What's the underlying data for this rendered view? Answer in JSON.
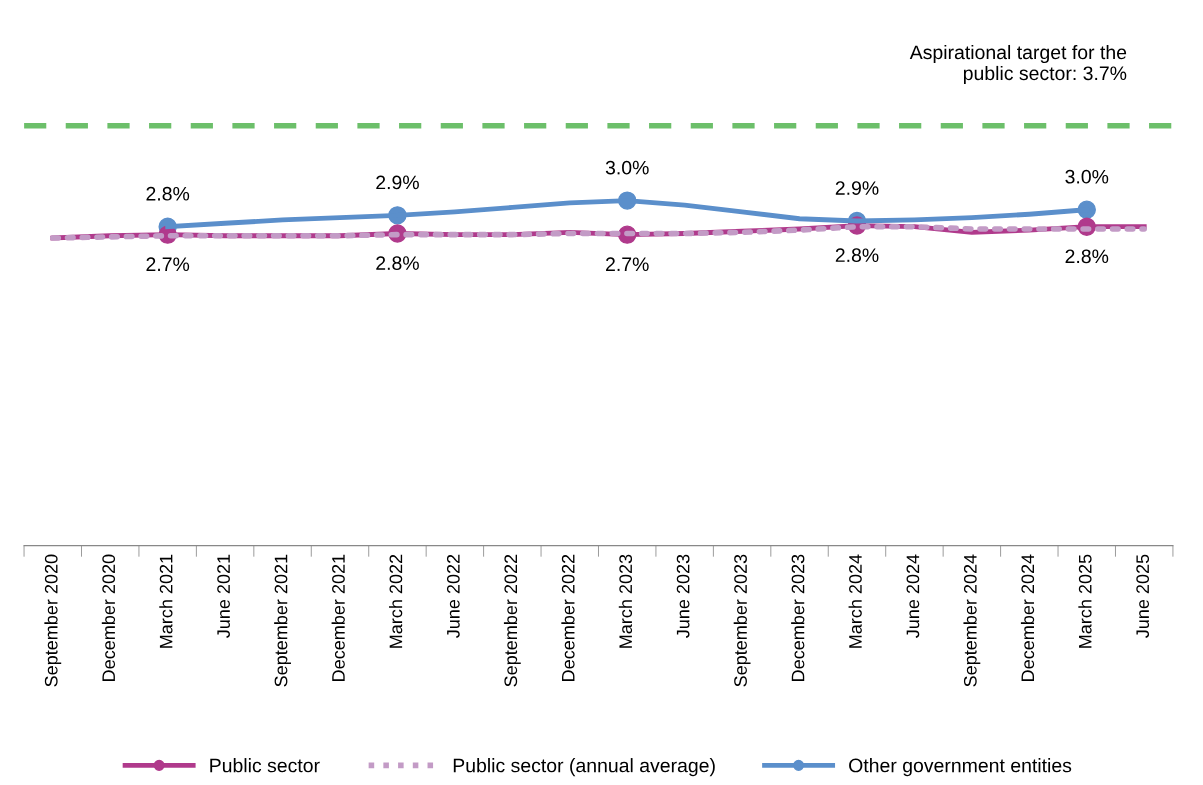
{
  "chart_data": {
    "type": "line",
    "categories": [
      "September 2020",
      "December 2020",
      "March 2021",
      "June 2021",
      "September 2021",
      "December 2021",
      "March 2022",
      "June 2022",
      "September 2022",
      "December 2022",
      "March 2023",
      "June 2023",
      "September 2023",
      "December 2023",
      "March 2024",
      "June 2024",
      "September 2024",
      "December 2024",
      "March 2025",
      "June 2025"
    ],
    "series": [
      {
        "name": "Public sector",
        "color": "#b03a8c",
        "line_style": "solid",
        "values": [
          2.71,
          2.73,
          2.74,
          2.73,
          2.73,
          2.73,
          2.75,
          2.74,
          2.74,
          2.76,
          2.74,
          2.75,
          2.77,
          2.79,
          2.82,
          2.81,
          2.76,
          2.78,
          2.81,
          2.81
        ],
        "value_labels": [
          null,
          null,
          "2.7%",
          null,
          null,
          null,
          "2.8%",
          null,
          null,
          null,
          "2.7%",
          null,
          null,
          null,
          "2.8%",
          null,
          null,
          null,
          "2.8%",
          null
        ]
      },
      {
        "name": "Public sector (annual average)",
        "color": "#c39bc6",
        "line_style": "dotted",
        "values": [
          2.71,
          2.72,
          2.73,
          2.73,
          2.73,
          2.73,
          2.74,
          2.74,
          2.74,
          2.75,
          2.75,
          2.75,
          2.76,
          2.78,
          2.81,
          2.81,
          2.79,
          2.79,
          2.79,
          2.79
        ]
      },
      {
        "name": "Other government entities",
        "color": "#5b8fcb",
        "line_style": "solid",
        "values": [
          null,
          null,
          2.81,
          2.84,
          2.87,
          2.89,
          2.91,
          2.94,
          2.98,
          3.02,
          3.04,
          3.0,
          2.94,
          2.88,
          2.86,
          2.87,
          2.89,
          2.92,
          2.96,
          null
        ],
        "value_labels": [
          null,
          null,
          "2.8%",
          null,
          null,
          null,
          "2.9%",
          null,
          null,
          null,
          "3.0%",
          null,
          null,
          null,
          "2.9%",
          null,
          null,
          null,
          "3.0%",
          null
        ]
      }
    ],
    "tick_labels": "x",
    "ref_lines": [
      {
        "axis": "y",
        "value": 3.7,
        "label": "Aspirational target for the\npublic sector: 3.7%",
        "color": "#6cbf6a",
        "line_style": "dashed"
      }
    ],
    "grid": false,
    "legend": "bottom"
  }
}
